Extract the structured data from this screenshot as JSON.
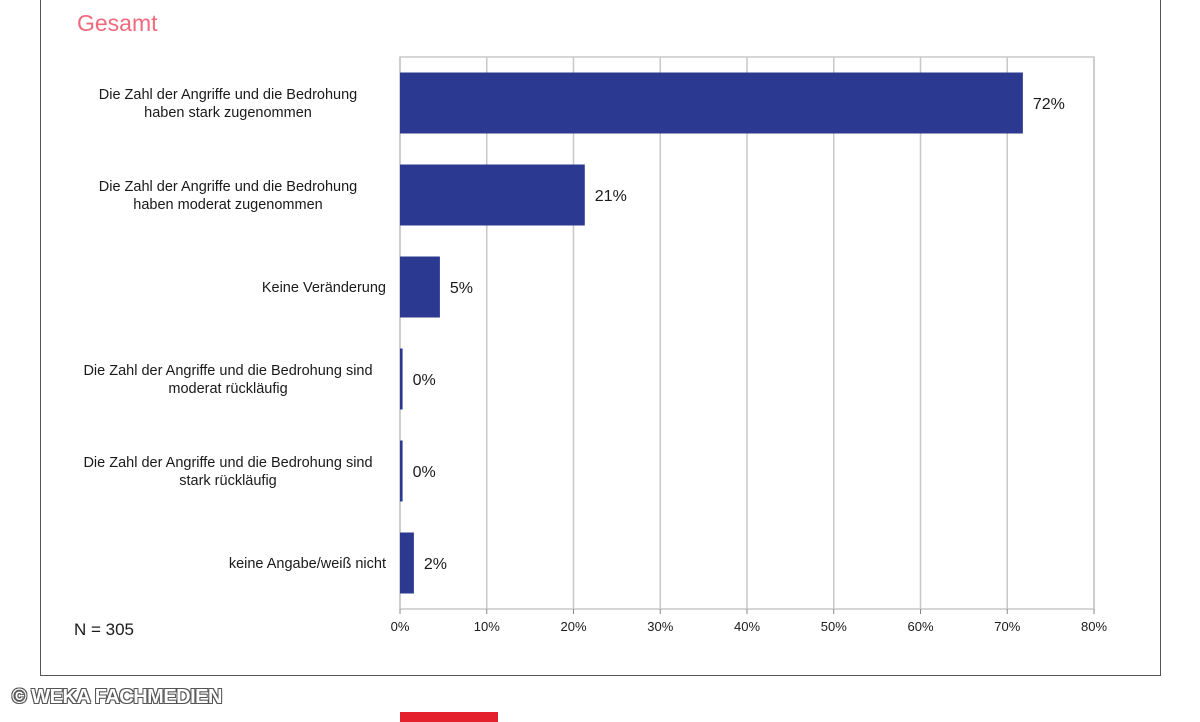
{
  "subtitle": "Gesamt",
  "sample_size": "N = 305",
  "copyright": "© WEKA FACHMEDIEN",
  "colors": {
    "bar": "#2b3990",
    "subtitle": "#f0697c",
    "grid": "#c8c8c8",
    "logo": "#e3202b"
  },
  "chart_data": {
    "type": "bar",
    "orientation": "horizontal",
    "categories": [
      [
        "Die Zahl der Angriffe und die Bedrohung",
        "haben stark zugenommen"
      ],
      [
        "Die Zahl der Angriffe und die Bedrohung",
        "haben moderat zugenommen"
      ],
      [
        "Keine Veränderung"
      ],
      [
        "Die Zahl der Angriffe und die Bedrohung sind",
        "moderat rückläufig"
      ],
      [
        "Die Zahl der Angriffe und die Bedrohung sind",
        "stark rückläufig"
      ],
      [
        "keine Angabe/weiß nicht"
      ]
    ],
    "values": [
      71.8,
      21.3,
      4.6,
      0.3,
      0.3,
      1.6
    ],
    "data_labels": [
      "72%",
      "21%",
      "5%",
      "0%",
      "0%",
      "2%"
    ],
    "xlim": [
      0,
      80
    ],
    "x_ticks": [
      0,
      10,
      20,
      30,
      40,
      50,
      60,
      70,
      80
    ],
    "x_tick_labels": [
      "0%",
      "10%",
      "20%",
      "30%",
      "40%",
      "50%",
      "60%",
      "70%",
      "80%"
    ],
    "grid": true,
    "legend": "none"
  }
}
